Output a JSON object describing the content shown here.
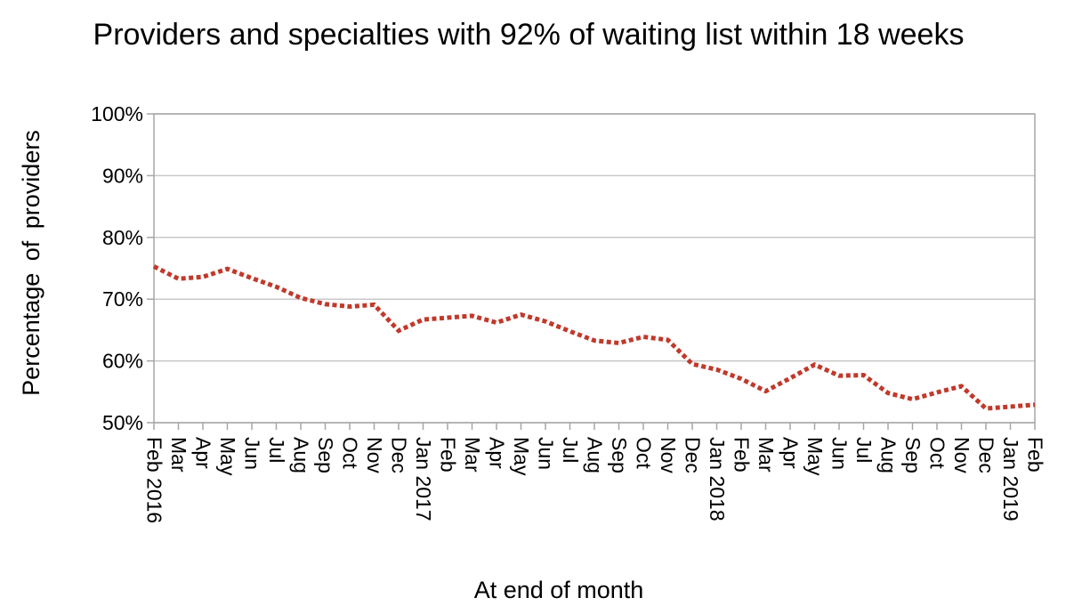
{
  "chart_data": {
    "type": "line",
    "title": "Providers and specialties with 92% of waiting list within 18 weeks",
    "xlabel": "At end of month",
    "ylabel": "Percentage of providers",
    "y_tick_labels": [
      "50%",
      "60%",
      "70%",
      "80%",
      "90%",
      "100%"
    ],
    "ylim": [
      50,
      100
    ],
    "grid": true,
    "legend": "none",
    "colors": {
      "line": "#c0392b",
      "grid": "#c8c8c8",
      "axis": "#a6a6a6"
    },
    "categories": [
      "Feb 2016",
      "Mar",
      "Apr",
      "May",
      "Jun",
      "Jul",
      "Aug",
      "Sep",
      "Oct",
      "Nov",
      "Dec",
      "Jan 2017",
      "Feb",
      "Mar",
      "Apr",
      "May",
      "Jun",
      "Jul",
      "Aug",
      "Sep",
      "Oct",
      "Nov",
      "Dec",
      "Jan 2018",
      "Feb",
      "Mar",
      "Apr",
      "May",
      "Jun",
      "Jul",
      "Aug",
      "Sep",
      "Oct",
      "Nov",
      "Dec",
      "Jan 2019",
      "Feb"
    ],
    "series": [
      {
        "values": [
          75.3,
          73.3,
          73.6,
          74.9,
          73.4,
          72.0,
          70.2,
          69.2,
          68.8,
          69.1,
          64.9,
          66.7,
          67.0,
          67.3,
          66.2,
          67.5,
          66.4,
          64.8,
          63.3,
          62.9,
          63.9,
          63.4,
          59.5,
          58.6,
          57.1,
          55.1,
          57.2,
          59.4,
          57.6,
          57.7,
          54.8,
          53.8,
          54.9,
          55.9,
          52.3,
          52.6,
          52.9
        ]
      }
    ]
  }
}
